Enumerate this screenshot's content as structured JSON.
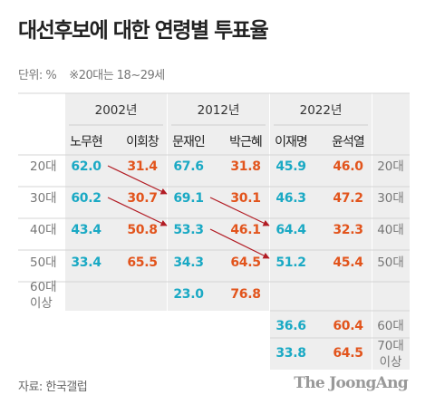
{
  "title": "대선후보에 대한 연령별 투표율",
  "unit_label": "단위: %",
  "unit_note": "※20대는 18~29세",
  "source": "자료: 한국갤럽",
  "brand": "The JoongAng",
  "colors": {
    "cand_a": "#1aa9c4",
    "cand_b": "#e2541c",
    "arrow": "#b21c24",
    "group_bg": "#eeeeee",
    "row_line": "#d4d4d4",
    "divider": "#ffffff"
  },
  "chart_data": {
    "type": "table",
    "elections": [
      {
        "year": "2002년",
        "candidates": [
          "노무현",
          "이회창"
        ]
      },
      {
        "year": "2012년",
        "candidates": [
          "문재인",
          "박근혜"
        ]
      },
      {
        "year": "2022년",
        "candidates": [
          "이재명",
          "윤석열"
        ]
      }
    ],
    "rows": [
      {
        "age": [
          "20대"
        ],
        "label_left": true,
        "label_right": true,
        "values": [
          [
            62.0,
            31.4
          ],
          [
            67.6,
            31.8
          ],
          [
            45.9,
            46.0
          ]
        ]
      },
      {
        "age": [
          "30대"
        ],
        "label_left": true,
        "label_right": true,
        "values": [
          [
            60.2,
            30.7
          ],
          [
            69.1,
            30.1
          ],
          [
            46.3,
            47.2
          ]
        ]
      },
      {
        "age": [
          "40대"
        ],
        "label_left": true,
        "label_right": true,
        "values": [
          [
            43.4,
            50.8
          ],
          [
            53.3,
            46.1
          ],
          [
            64.4,
            32.3
          ]
        ]
      },
      {
        "age": [
          "50대"
        ],
        "label_left": true,
        "label_right": true,
        "values": [
          [
            33.4,
            65.5
          ],
          [
            34.3,
            64.5
          ],
          [
            51.2,
            45.4
          ]
        ]
      },
      {
        "age": [
          "60대",
          "이상"
        ],
        "label_left": true,
        "label_right": false,
        "values": [
          null,
          [
            23.0,
            76.8
          ],
          null
        ]
      },
      {
        "age": [
          "60대"
        ],
        "label_left": false,
        "label_right": true,
        "values": [
          null,
          null,
          [
            36.6,
            60.4
          ]
        ]
      },
      {
        "age": [
          "70대",
          "이상"
        ],
        "label_left": false,
        "label_right": true,
        "values": [
          null,
          null,
          [
            33.8,
            64.5
          ]
        ]
      }
    ],
    "arrows": [
      {
        "from": {
          "row": 0,
          "election": 0
        },
        "to": {
          "row": 1,
          "election": 1
        }
      },
      {
        "from": {
          "row": 1,
          "election": 0
        },
        "to": {
          "row": 2,
          "election": 1
        }
      },
      {
        "from": {
          "row": 1,
          "election": 1
        },
        "to": {
          "row": 2,
          "election": 2
        }
      },
      {
        "from": {
          "row": 2,
          "election": 1
        },
        "to": {
          "row": 3,
          "election": 2
        }
      }
    ]
  }
}
